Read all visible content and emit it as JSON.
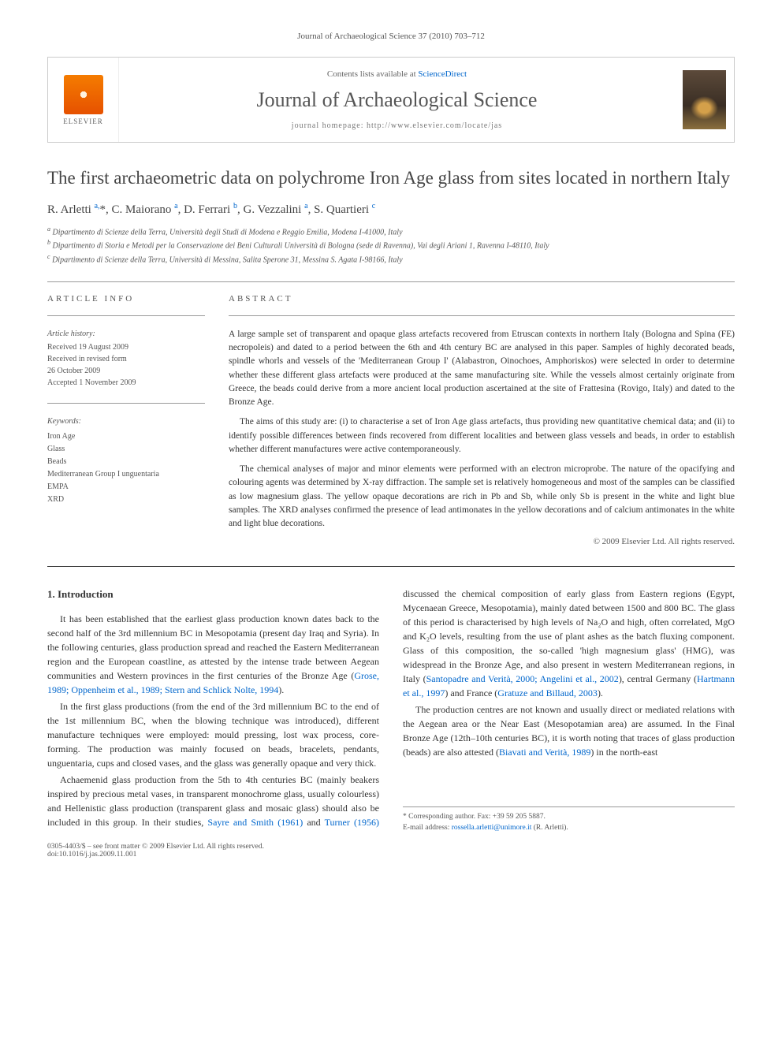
{
  "journal_header": "Journal of Archaeological Science 37 (2010) 703–712",
  "header": {
    "contents_prefix": "Contents lists available at ",
    "contents_link": "ScienceDirect",
    "journal_name": "Journal of Archaeological Science",
    "homepage_label": "journal homepage: ",
    "homepage_url": "http://www.elsevier.com/locate/jas",
    "elsevier": "ELSEVIER"
  },
  "article": {
    "title": "The first archaeometric data on polychrome Iron Age glass from sites located in northern Italy",
    "authors_html": "R. Arletti <sup>a,</sup>*, C. Maiorano <sup>a</sup>, D. Ferrari <sup>b</sup>, G. Vezzalini <sup>a</sup>, S. Quartieri <sup>c</sup>",
    "affiliations": [
      "a Dipartimento di Scienze della Terra, Università degli Studi di Modena e Reggio Emilia, Modena I-41000, Italy",
      "b Dipartimento di Storia e Metodi per la Conservazione dei Beni Culturali Università di Bologna (sede di Ravenna), Vai degli Ariani 1, Ravenna I-48110, Italy",
      "c Dipartimento di Scienze della Terra, Università di Messina, Salita Sperone 31, Messina S. Agata I-98166, Italy"
    ]
  },
  "info": {
    "section_label": "ARTICLE INFO",
    "history_label": "Article history:",
    "history": [
      "Received 19 August 2009",
      "Received in revised form",
      "26 October 2009",
      "Accepted 1 November 2009"
    ],
    "keywords_label": "Keywords:",
    "keywords": [
      "Iron Age",
      "Glass",
      "Beads",
      "Mediterranean Group I unguentaria",
      "EMPA",
      "XRD"
    ]
  },
  "abstract": {
    "section_label": "ABSTRACT",
    "paragraphs": [
      "A large sample set of transparent and opaque glass artefacts recovered from Etruscan contexts in northern Italy (Bologna and Spina (FE) necropoleis) and dated to a period between the 6th and 4th century BC are analysed in this paper. Samples of highly decorated beads, spindle whorls and vessels of the 'Mediterranean Group I' (Alabastron, Oinochoes, Amphoriskos) were selected in order to determine whether these different glass artefacts were produced at the same manufacturing site. While the vessels almost certainly originate from Greece, the beads could derive from a more ancient local production ascertained at the site of Frattesina (Rovigo, Italy) and dated to the Bronze Age.",
      "The aims of this study are: (i) to characterise a set of Iron Age glass artefacts, thus providing new quantitative chemical data; and (ii) to identify possible differences between finds recovered from different localities and between glass vessels and beads, in order to establish whether different manufactures were active contemporaneously.",
      "The chemical analyses of major and minor elements were performed with an electron microprobe. The nature of the opacifying and colouring agents was determined by X-ray diffraction. The sample set is relatively homogeneous and most of the samples can be classified as low magnesium glass. The yellow opaque decorations are rich in Pb and Sb, while only Sb is present in the white and light blue samples. The XRD analyses confirmed the presence of lead antimonates in the yellow decorations and of calcium antimonates in the white and light blue decorations."
    ],
    "copyright": "© 2009 Elsevier Ltd. All rights reserved."
  },
  "body": {
    "section_heading": "1. Introduction",
    "paragraphs": [
      "It has been established that the earliest glass production known dates back to the second half of the 3rd millennium BC in Mesopotamia (present day Iraq and Syria). In the following centuries, glass production spread and reached the Eastern Mediterranean region and the European coastline, as attested by the intense trade between Aegean communities and Western provinces in the first centuries of the Bronze Age (Grose, 1989; Oppenheim et al., 1989; Stern and Schlick Nolte, 1994).",
      "In the first glass productions (from the end of the 3rd millennium BC to the end of the 1st millennium BC, when the blowing technique was introduced), different manufacture techniques were employed: mould pressing, lost wax process, core-forming. The production was mainly focused on beads, bracelets, pendants, unguentaria, cups and closed vases, and the glass was generally opaque and very thick.",
      "Achaemenid glass production from the 5th to 4th centuries BC (mainly beakers inspired by precious metal vases, in transparent monochrome glass, usually colourless) and Hellenistic glass production (transparent glass and mosaic glass) should also be included in this group. In their studies, Sayre and Smith (1961) and Turner (1956) discussed the chemical composition of early glass from Eastern regions (Egypt, Mycenaean Greece, Mesopotamia), mainly dated between 1500 and 800 BC. The glass of this period is characterised by high levels of Na₂O and high, often correlated, MgO and K₂O levels, resulting from the use of plant ashes as the batch fluxing component. Glass of this composition, the so-called 'high magnesium glass' (HMG), was widespread in the Bronze Age, and also present in western Mediterranean regions, in Italy (Santopadre and Verità, 2000; Angelini et al., 2002), central Germany (Hartmann et al., 1997) and France (Gratuze and Billaud, 2003).",
      "The production centres are not known and usually direct or mediated relations with the Aegean area or the Near East (Mesopotamian area) are assumed. In the Final Bronze Age (12th–10th centuries BC), it is worth noting that traces of glass production (beads) are also attested (Biavati and Verità, 1989) in the north-east"
    ]
  },
  "footer": {
    "corresponding": "* Corresponding author. Fax: +39 59 205 5887.",
    "email_label": "E-mail address: ",
    "email": "rossella.arletti@unimore.it",
    "email_suffix": " (R. Arletti).",
    "issn": "0305-4403/$ – see front matter © 2009 Elsevier Ltd. All rights reserved.",
    "doi": "doi:10.1016/j.jas.2009.11.001"
  },
  "colors": {
    "link": "#0066cc",
    "text": "#333333",
    "muted": "#555555",
    "border": "#cccccc"
  }
}
